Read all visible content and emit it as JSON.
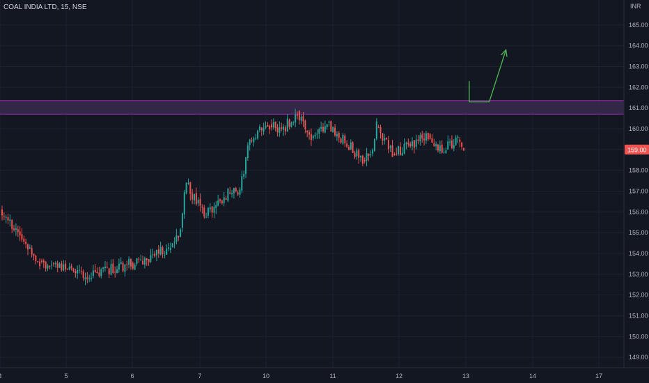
{
  "header": {
    "title": "COAL INDIA LTD, 15, NSE"
  },
  "price_axis": {
    "currency": "INR",
    "last_price_label": "159.00",
    "last_price": 159.0
  },
  "colors": {
    "background": "#131722",
    "up": "#26a69a",
    "down": "#ef5350",
    "zone_fill": "#3a2a4e",
    "zone_border": "#9c27b0",
    "arrow": "#4caf50",
    "price_label_bg": "#ef5350"
  },
  "chart_data": {
    "type": "candlestick",
    "ylim": [
      148.5,
      166.2
    ],
    "yticks": [
      149,
      150,
      151,
      152,
      153,
      154,
      155,
      156,
      157,
      158,
      159,
      160,
      161,
      162,
      163,
      164,
      165
    ],
    "ytick_labels": [
      "149.00",
      "150.00",
      "151.00",
      "152.00",
      "153.00",
      "154.00",
      "155.00",
      "156.00",
      "157.00",
      "158.00",
      "159.00",
      "160.00",
      "161.00",
      "162.00",
      "163.00",
      "164.00",
      "165.00"
    ],
    "x_sessions": [
      "4",
      "5",
      "6",
      "7",
      "10",
      "11",
      "12",
      "13",
      "14",
      "17"
    ],
    "x_labels": [
      "4",
      "5",
      "6",
      "7",
      "10",
      "11",
      "12",
      "13",
      "14",
      "17"
    ],
    "zone": {
      "low": 160.7,
      "high": 161.35
    },
    "arrow_path": [
      {
        "session": 13.05,
        "price": 162.3
      },
      {
        "session": 13.05,
        "price": 161.3
      },
      {
        "session": 13.35,
        "price": 161.3
      },
      {
        "session": 13.6,
        "price": 163.8
      }
    ],
    "segments": [
      {
        "start": 156.1,
        "end": 153.6,
        "lo": 152.4,
        "hi": 156.3,
        "n": 20,
        "seed": 3
      },
      {
        "start": 153.6,
        "end": 152.95,
        "lo": 152.2,
        "hi": 154.1,
        "n": 26,
        "seed": 7
      },
      {
        "start": 152.95,
        "end": 153.5,
        "lo": 152.8,
        "hi": 155.0,
        "n": 20,
        "seed": 11
      },
      {
        "start": 153.5,
        "end": 154.2,
        "lo": 153.2,
        "hi": 154.8,
        "n": 19,
        "seed": 13
      },
      {
        "start": 154.2,
        "end": 155.2,
        "lo": 153.8,
        "hi": 155.6,
        "n": 6,
        "seed": 17
      },
      {
        "start": 155.2,
        "end": 157.4,
        "lo": 154.9,
        "hi": 157.5,
        "n": 3,
        "seed": 19
      },
      {
        "start": 157.4,
        "end": 155.8,
        "lo": 155.3,
        "hi": 157.6,
        "n": 9,
        "seed": 23
      },
      {
        "start": 155.8,
        "end": 156.9,
        "lo": 155.7,
        "hi": 157.3,
        "n": 12,
        "seed": 29
      },
      {
        "start": 156.9,
        "end": 157.0,
        "lo": 156.2,
        "hi": 157.2,
        "n": 6,
        "seed": 31
      },
      {
        "start": 157.0,
        "end": 159.5,
        "lo": 156.9,
        "hi": 159.9,
        "n": 5,
        "seed": 37
      },
      {
        "start": 159.5,
        "end": 160.2,
        "lo": 159.0,
        "hi": 160.4,
        "n": 10,
        "seed": 41
      },
      {
        "start": 160.2,
        "end": 159.9,
        "lo": 159.6,
        "hi": 160.5,
        "n": 6,
        "seed": 43
      },
      {
        "start": 159.9,
        "end": 160.8,
        "lo": 159.5,
        "hi": 161.0,
        "n": 8,
        "seed": 47
      },
      {
        "start": 160.8,
        "end": 159.5,
        "lo": 158.3,
        "hi": 160.9,
        "n": 7,
        "seed": 53
      },
      {
        "start": 159.5,
        "end": 160.3,
        "lo": 159.1,
        "hi": 160.5,
        "n": 8,
        "seed": 59
      },
      {
        "start": 160.3,
        "end": 158.5,
        "lo": 158.1,
        "hi": 160.4,
        "n": 18,
        "seed": 61
      },
      {
        "start": 158.5,
        "end": 158.9,
        "lo": 158.2,
        "hi": 159.3,
        "n": 5,
        "seed": 67
      },
      {
        "start": 158.9,
        "end": 160.1,
        "lo": 158.9,
        "hi": 160.7,
        "n": 2,
        "seed": 71
      },
      {
        "start": 160.1,
        "end": 158.8,
        "lo": 158.6,
        "hi": 160.2,
        "n": 8,
        "seed": 73
      },
      {
        "start": 158.8,
        "end": 159.7,
        "lo": 158.7,
        "hi": 159.9,
        "n": 18,
        "seed": 79
      },
      {
        "start": 159.7,
        "end": 158.9,
        "lo": 158.6,
        "hi": 159.8,
        "n": 5,
        "seed": 83
      },
      {
        "start": 158.9,
        "end": 159.5,
        "lo": 158.8,
        "hi": 159.7,
        "n": 10,
        "seed": 89
      },
      {
        "start": 159.5,
        "end": 159.0,
        "lo": 158.9,
        "hi": 159.6,
        "n": 3,
        "seed": 97
      }
    ]
  }
}
